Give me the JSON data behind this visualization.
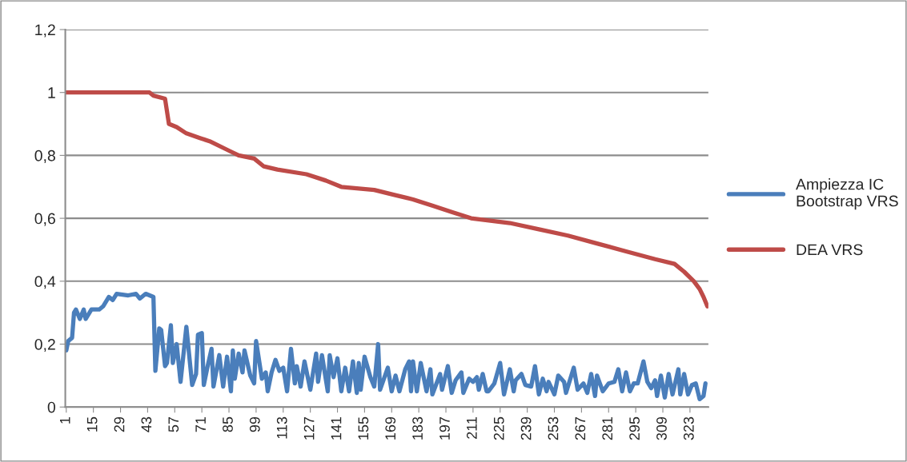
{
  "chart_data": {
    "type": "line",
    "xlim": [
      0.5,
      332.5
    ],
    "xticks": [
      1,
      15,
      29,
      43,
      57,
      71,
      85,
      99,
      113,
      127,
      141,
      155,
      169,
      183,
      197,
      211,
      225,
      239,
      253,
      267,
      281,
      295,
      309,
      323
    ],
    "ylim": [
      0,
      1.2
    ],
    "yticks": [
      0,
      {
        "value": 0.2,
        "label": "0,2"
      },
      {
        "value": 0.4,
        "label": "0,4"
      },
      {
        "value": 0.6,
        "label": "0,6"
      },
      {
        "value": 0.8,
        "label": "0,8"
      },
      1,
      {
        "value": 1.2,
        "label": "1,2"
      }
    ],
    "grid": "y",
    "legend": "right",
    "marker": "none",
    "line_style": "solid",
    "series": [
      {
        "name": "Ampiezza IC\nBootstrap VRS",
        "color": "#4a7ebb",
        "x": [
          1,
          2,
          4,
          5,
          6,
          8,
          10,
          11,
          14,
          18,
          20,
          23,
          25,
          27,
          33,
          37,
          39,
          42,
          46,
          47,
          49,
          50,
          52,
          53,
          55,
          56,
          58,
          60,
          63,
          66,
          68,
          69,
          71,
          72,
          74,
          76,
          77,
          80,
          82,
          84,
          86,
          87,
          88,
          90,
          92,
          93,
          96,
          98,
          99,
          102,
          104,
          105,
          107,
          109,
          111,
          113,
          115,
          117,
          119,
          120,
          122,
          124,
          127,
          130,
          131,
          133,
          136,
          137,
          139,
          141,
          143,
          145,
          147,
          149,
          151,
          152,
          153,
          155,
          158,
          160,
          162,
          163,
          167,
          169,
          171,
          173,
          176,
          178,
          179,
          180,
          182,
          184,
          187,
          189,
          190,
          194,
          195,
          198,
          200,
          202,
          205,
          206,
          209,
          211,
          213,
          214,
          216,
          218,
          219,
          222,
          225,
          227,
          230,
          232,
          233,
          236,
          238,
          241,
          243,
          245,
          247,
          249,
          250,
          253,
          255,
          258,
          259,
          263,
          265,
          268,
          270,
          272,
          274,
          275,
          278,
          281,
          284,
          286,
          288,
          290,
          292,
          294,
          296,
          299,
          301,
          303,
          305,
          306,
          308,
          310,
          312,
          314,
          317,
          318,
          320,
          322,
          324,
          326,
          328,
          330,
          331
        ],
        "values": [
          0.18,
          0.21,
          0.22,
          0.3,
          0.31,
          0.28,
          0.31,
          0.28,
          0.31,
          0.31,
          0.32,
          0.35,
          0.34,
          0.36,
          0.355,
          0.36,
          0.345,
          0.36,
          0.35,
          0.115,
          0.25,
          0.245,
          0.13,
          0.14,
          0.26,
          0.14,
          0.2,
          0.08,
          0.255,
          0.07,
          0.105,
          0.23,
          0.235,
          0.07,
          0.13,
          0.185,
          0.065,
          0.165,
          0.065,
          0.16,
          0.05,
          0.18,
          0.09,
          0.17,
          0.11,
          0.18,
          0.1,
          0.075,
          0.21,
          0.09,
          0.11,
          0.05,
          0.11,
          0.15,
          0.115,
          0.125,
          0.05,
          0.185,
          0.075,
          0.13,
          0.065,
          0.145,
          0.055,
          0.17,
          0.08,
          0.165,
          0.05,
          0.165,
          0.095,
          0.155,
          0.05,
          0.125,
          0.05,
          0.145,
          0.045,
          0.14,
          0.055,
          0.16,
          0.095,
          0.065,
          0.2,
          0.055,
          0.125,
          0.05,
          0.1,
          0.05,
          0.12,
          0.145,
          0.05,
          0.145,
          0.05,
          0.14,
          0.05,
          0.12,
          0.04,
          0.105,
          0.055,
          0.13,
          0.045,
          0.085,
          0.11,
          0.045,
          0.09,
          0.08,
          0.095,
          0.055,
          0.105,
          0.05,
          0.05,
          0.075,
          0.14,
          0.04,
          0.12,
          0.05,
          0.085,
          0.105,
          0.07,
          0.065,
          0.13,
          0.04,
          0.09,
          0.05,
          0.08,
          0.04,
          0.1,
          0.08,
          0.045,
          0.125,
          0.055,
          0.075,
          0.045,
          0.105,
          0.035,
          0.1,
          0.05,
          0.075,
          0.08,
          0.12,
          0.05,
          0.11,
          0.05,
          0.075,
          0.075,
          0.145,
          0.08,
          0.06,
          0.085,
          0.035,
          0.1,
          0.03,
          0.105,
          0.04,
          0.12,
          0.04,
          0.105,
          0.04,
          0.07,
          0.075,
          0.025,
          0.035,
          0.075
        ]
      },
      {
        "name": "DEA VRS",
        "color": "#be4b48",
        "x": [
          1,
          44,
          46,
          52,
          54,
          58,
          63,
          70,
          75,
          85,
          90,
          98,
          103,
          110,
          125,
          135,
          143,
          160,
          170,
          180,
          190,
          200,
          210,
          230,
          245,
          260,
          275,
          290,
          305,
          315,
          320,
          325,
          328,
          330,
          332
        ],
        "values": [
          1.0,
          1.0,
          0.99,
          0.98,
          0.9,
          0.89,
          0.87,
          0.855,
          0.845,
          0.815,
          0.8,
          0.79,
          0.765,
          0.755,
          0.74,
          0.72,
          0.7,
          0.69,
          0.675,
          0.66,
          0.64,
          0.62,
          0.6,
          0.585,
          0.565,
          0.545,
          0.52,
          0.495,
          0.47,
          0.455,
          0.43,
          0.4,
          0.375,
          0.35,
          0.32
        ]
      }
    ]
  }
}
